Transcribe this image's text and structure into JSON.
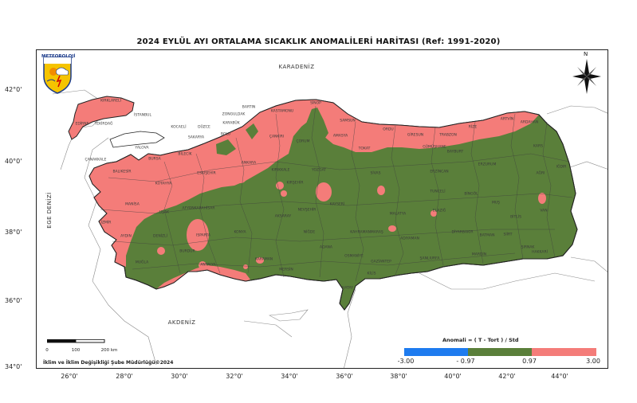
{
  "title": "2024 EYLÜL AYI ORTALAMA SICAKLIK ANOMALİLERİ HARİTASI (Ref: 1991-2020)",
  "logo_text": "METEOROLOJİ",
  "north_label": "N",
  "colors": {
    "negative": "#1e7bef",
    "normal": "#5a7f3a",
    "positive": "#f47c79",
    "border": "#222222"
  },
  "latitudes": [
    "42°0'",
    "40°0'",
    "38°0'",
    "36°0'",
    "34°0'"
  ],
  "longitudes": [
    "26°0'",
    "28°0'",
    "30°0'",
    "32°0'",
    "34°0'",
    "36°0'",
    "38°0'",
    "40°0'",
    "42°0'",
    "44°0'"
  ],
  "seas": {
    "black_sea": "KARADENİZ",
    "aegean": "EGE DENİZİ",
    "mediterranean": "AKDENİZ"
  },
  "provinces": [
    "KIRKLARELİ",
    "EDİRNE",
    "TEKİRDAĞ",
    "İSTANBUL",
    "KOCAELİ",
    "SAKARYA",
    "DÜZCE",
    "BOLU",
    "ZONGULDAK",
    "BARTIN",
    "KASTAMONU",
    "SİNOP",
    "SAMSUN",
    "ORDU",
    "GİRESUN",
    "TRABZON",
    "RİZE",
    "ARTVİN",
    "ARDAHAN",
    "KARS",
    "IĞDIR",
    "AĞRI",
    "VAN",
    "HAKKARİ",
    "ŞIRNAK",
    "SİİRT",
    "BİTLİS",
    "MUŞ",
    "BİNGÖL",
    "ERZURUM",
    "ERZİNCAN",
    "GÜMÜŞHANE",
    "BAYBURT",
    "TOKAT",
    "AMASYA",
    "ÇORUM",
    "ÇANKIRI",
    "KARABÜK",
    "BİLECİK",
    "BURSA",
    "YALOVA",
    "BALIKESİR",
    "ÇANAKKALE",
    "MANİSA",
    "İZMİR",
    "AYDIN",
    "MUĞLA",
    "DENİZLİ",
    "UŞAK",
    "KÜTAHYA",
    "AFYONKARAHİSAR",
    "ESKİŞEHİR",
    "ANKARA",
    "KIRIKKALE",
    "KIRŞEHİR",
    "YOZGAT",
    "SİVAS",
    "KAYSERİ",
    "NEVŞEHİR",
    "AKSARAY",
    "NİĞDE",
    "KONYA",
    "KARAMAN",
    "ISPARTA",
    "BURDUR",
    "ANTALYA",
    "MERSİN",
    "ADANA",
    "OSMANİYE",
    "HATAY",
    "GAZİANTEP",
    "KİLİS",
    "ŞANLIURFA",
    "ADIYAMAN",
    "MALATYA",
    "ELAZIĞ",
    "TUNCELİ",
    "DİYARBAKIR",
    "BATMAN",
    "MARDİN",
    "KAHRAMANMARAŞ"
  ],
  "scale": {
    "labels": [
      "0",
      "100",
      "200 km"
    ]
  },
  "credit": "İklim ve İklim Değişikliği Şube Müdürlüğü©2024",
  "legend": {
    "title": "Anomali = ( T - Tort ) / Std",
    "ticks": [
      "-3.00",
      "- 0.97",
      "0.97",
      "3.00"
    ],
    "classes": [
      {
        "range": "-3.00 to -0.97",
        "color": "#1e7bef"
      },
      {
        "range": "-0.97 to 0.97",
        "color": "#5a7f3a"
      },
      {
        "range": "0.97 to 3.00",
        "color": "#f47c79"
      }
    ]
  }
}
